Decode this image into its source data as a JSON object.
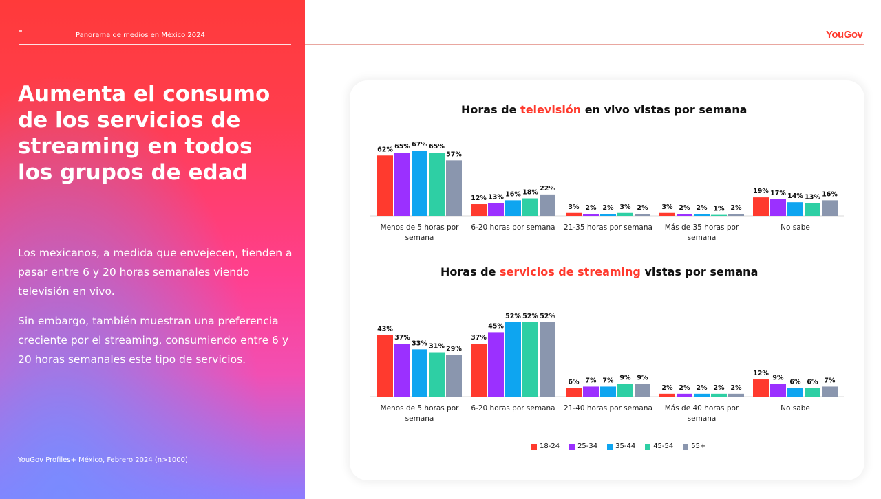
{
  "header": {
    "title": "Panorama de medios en México 2024",
    "logo": "YouGov"
  },
  "left": {
    "headline": "Aumenta el consumo de los servicios de streaming en todos los grupos de edad",
    "para1": "Los mexicanos, a medida que envejecen, tienden a pasar entre 6 y 20 horas semanales viendo televisión en vivo.",
    "para2": "Sin embargo, también muestran una preferencia creciente por el streaming, consumiendo entre 6 y 20 horas semanales este tipo de servicios.",
    "source": "YouGov Profiles+ México, Febrero 2024 (n>1000)"
  },
  "colors": {
    "accent": "#ff3a2e"
  },
  "chart_data": [
    {
      "type": "bar",
      "title_pre": "Horas de ",
      "title_accent": "televisión",
      "title_post": " en vivo vistas por semana",
      "categories": [
        "Menos de 5 horas por semana",
        "6-20 horas por semana",
        "21-35 horas por semana",
        "Más de 35 horas por semana",
        "No sabe"
      ],
      "ylim": [
        0,
        70
      ],
      "series": [
        {
          "name": "18-24",
          "color": "#ff3a2e",
          "values": [
            62,
            12,
            3,
            3,
            19
          ]
        },
        {
          "name": "25-34",
          "color": "#9b30ff",
          "values": [
            65,
            13,
            2,
            2,
            17
          ]
        },
        {
          "name": "35-44",
          "color": "#0ea5f0",
          "values": [
            67,
            16,
            2,
            2,
            14
          ]
        },
        {
          "name": "45-54",
          "color": "#2ecfa4",
          "values": [
            65,
            18,
            3,
            1,
            13
          ]
        },
        {
          "name": "55+",
          "color": "#8a96ae",
          "values": [
            57,
            22,
            2,
            2,
            16
          ]
        }
      ]
    },
    {
      "type": "bar",
      "title_pre": "Horas de ",
      "title_accent": "servicios de streaming",
      "title_post": " vistas por semana",
      "categories": [
        "Menos de 5 horas por semana",
        "6-20 horas por semana",
        "21-40 horas por semana",
        "Más de 40 horas por semana",
        "No sabe"
      ],
      "ylim": [
        0,
        70
      ],
      "series": [
        {
          "name": "18-24",
          "color": "#ff3a2e",
          "values": [
            43,
            37,
            6,
            2,
            12
          ]
        },
        {
          "name": "25-34",
          "color": "#9b30ff",
          "values": [
            37,
            45,
            7,
            2,
            9
          ]
        },
        {
          "name": "35-44",
          "color": "#0ea5f0",
          "values": [
            33,
            52,
            7,
            2,
            6
          ]
        },
        {
          "name": "45-54",
          "color": "#2ecfa4",
          "values": [
            31,
            52,
            9,
            2,
            6
          ]
        },
        {
          "name": "55+",
          "color": "#8a96ae",
          "values": [
            29,
            52,
            9,
            2,
            7
          ]
        }
      ]
    }
  ]
}
